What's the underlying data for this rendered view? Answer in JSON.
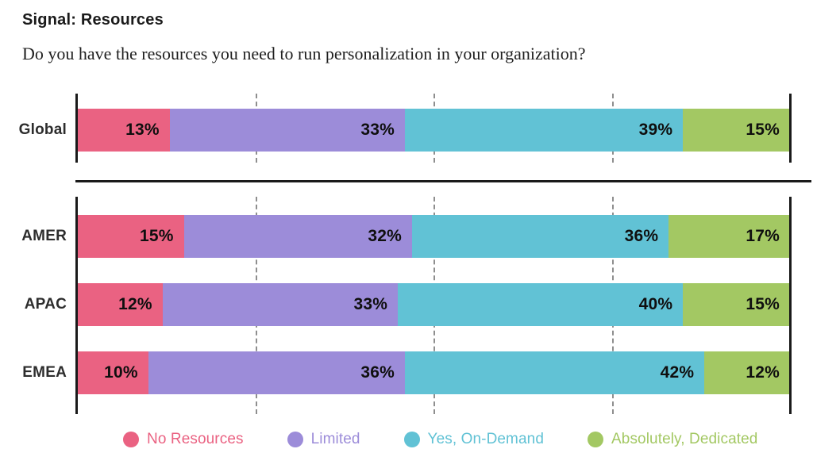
{
  "header": {
    "title": "Signal: Resources",
    "subtitle": "Do you have the resources you need to run personalization in your organization?"
  },
  "chart_data": {
    "type": "bar",
    "stacked": true,
    "orientation": "horizontal",
    "unit": "%",
    "xlim": [
      0,
      100
    ],
    "gridlines_pct": [
      25,
      50,
      75
    ],
    "series_names": [
      "No Resources",
      "Limited",
      "Yes, On-Demand",
      "Absolutely, Dedicated"
    ],
    "colors": [
      "#EA6282",
      "#9C8CD9",
      "#61C2D5",
      "#A3C863"
    ],
    "groups": [
      {
        "label": "Global",
        "values": [
          13,
          33,
          39,
          15
        ]
      },
      {
        "label": "AMER",
        "values": [
          15,
          32,
          36,
          17
        ]
      },
      {
        "label": "APAC",
        "values": [
          12,
          33,
          40,
          15
        ]
      },
      {
        "label": "EMEA",
        "values": [
          10,
          36,
          42,
          12
        ]
      }
    ]
  },
  "legend": {
    "items": [
      {
        "label": "No Resources",
        "color": "#EA6282"
      },
      {
        "label": "Limited",
        "color": "#9C8CD9"
      },
      {
        "label": "Yes, On-Demand",
        "color": "#61C2D5"
      },
      {
        "label": "Absolutely, Dedicated",
        "color": "#A3C863"
      }
    ]
  }
}
